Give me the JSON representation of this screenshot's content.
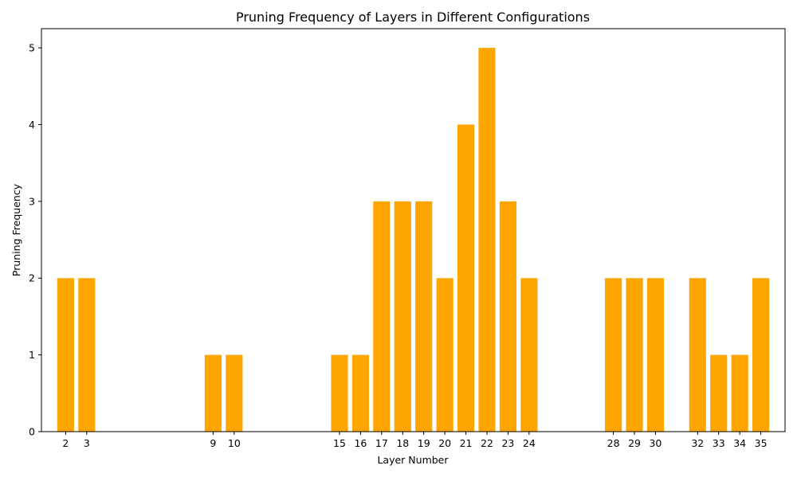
{
  "chart_data": {
    "type": "bar",
    "title": "Pruning Frequency of Layers in Different Configurations",
    "xlabel": "Layer Number",
    "ylabel": "Pruning Frequency",
    "x": [
      2,
      3,
      9,
      10,
      15,
      16,
      17,
      18,
      19,
      20,
      21,
      22,
      23,
      24,
      28,
      29,
      30,
      32,
      33,
      34,
      35
    ],
    "values": [
      2,
      2,
      1,
      1,
      1,
      1,
      3,
      3,
      3,
      2,
      4,
      5,
      3,
      2,
      2,
      2,
      2,
      2,
      1,
      1,
      2
    ],
    "xlim": [
      0.85,
      36.15
    ],
    "ylim": [
      0,
      5.25
    ],
    "yticks": [
      0,
      1,
      2,
      3,
      4,
      5
    ],
    "bar_color": "#ffa500",
    "grid": false,
    "legend": "none"
  }
}
